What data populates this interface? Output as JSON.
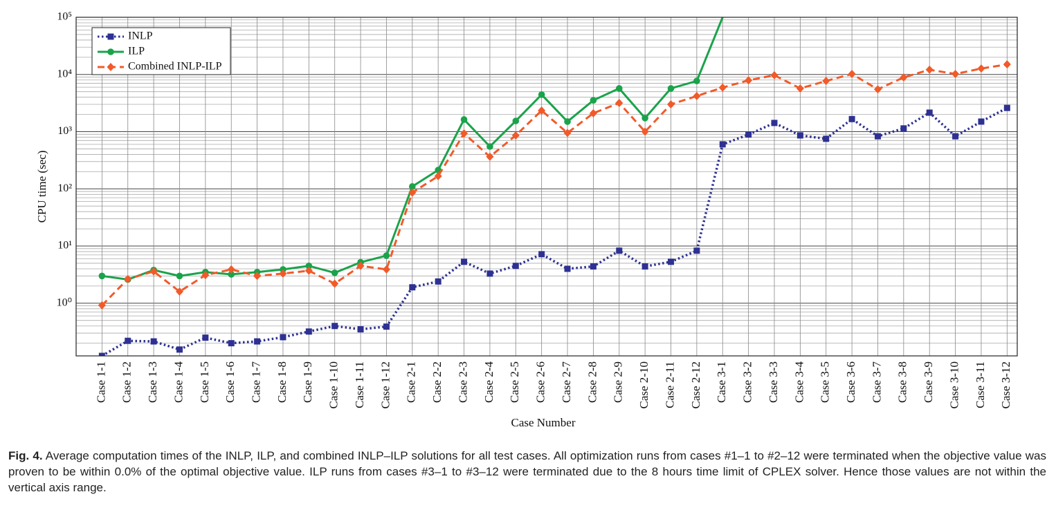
{
  "chart_data": {
    "type": "line",
    "y_label": "CPU time (sec)",
    "x_label": "Case Number",
    "categories": [
      "Case 1-1",
      "Case 1-2",
      "Case 1-3",
      "Case 1-4",
      "Case 1-5",
      "Case 1-6",
      "Case 1-7",
      "Case 1-8",
      "Case 1-9",
      "Case 1-10",
      "Case 1-11",
      "Case 1-12",
      "Case 2-1",
      "Case 2-2",
      "Case 2-3",
      "Case 2-4",
      "Case 2-5",
      "Case 2-6",
      "Case 2-7",
      "Case 2-8",
      "Case 2-9",
      "Case 2-10",
      "Case 2-11",
      "Case 2-12",
      "Case 3-1",
      "Case 3-2",
      "Case 3-3",
      "Case 3-4",
      "Case 3-5",
      "Case 3-6",
      "Case 3-7",
      "Case 3-8",
      "Case 3-9",
      "Case 3-10",
      "Case 3-11",
      "Case 3-12"
    ],
    "series": [
      {
        "name": "INLP",
        "color": "#2e3192",
        "style": "dotted",
        "marker": "square",
        "values": [
          0.12,
          0.22,
          0.215,
          0.155,
          0.25,
          0.2,
          0.215,
          0.255,
          0.32,
          0.4,
          0.35,
          0.39,
          1.9,
          2.4,
          5.3,
          3.3,
          4.5,
          7.2,
          4.0,
          4.4,
          8.3,
          4.4,
          5.3,
          8.3,
          600,
          890,
          1420,
          860,
          750,
          1660,
          830,
          1140,
          2150,
          830,
          1500,
          2600
        ]
      },
      {
        "name": "ILP",
        "color": "#1aa34a",
        "style": "solid",
        "marker": "circle",
        "values": [
          3.0,
          2.6,
          3.8,
          3.0,
          3.5,
          3.2,
          3.5,
          3.9,
          4.5,
          3.4,
          5.2,
          6.8,
          110,
          213,
          1630,
          550,
          1540,
          4440,
          1500,
          3530,
          5700,
          1730,
          5700,
          7700,
          100000,
          null,
          null,
          null,
          null,
          null,
          null,
          null,
          null,
          null,
          null,
          null
        ]
      },
      {
        "name": "Combined INLP-ILP",
        "color": "#f15a29",
        "style": "dashed",
        "marker": "diamond",
        "values": [
          0.92,
          2.65,
          3.6,
          1.6,
          3.1,
          3.9,
          3.0,
          3.3,
          3.7,
          2.2,
          4.5,
          3.9,
          86,
          167,
          930,
          365,
          860,
          2340,
          950,
          2100,
          3170,
          1000,
          3000,
          4200,
          5900,
          7900,
          9700,
          5700,
          7700,
          10200,
          5500,
          8900,
          12100,
          10200,
          12700,
          15000
        ]
      }
    ],
    "log_y": true,
    "ylim": [
      0.12,
      100000
    ],
    "yticks": [
      {
        "value": 1,
        "label": "10⁰"
      },
      {
        "value": 10,
        "label": "10¹"
      },
      {
        "value": 100,
        "label": "10²"
      },
      {
        "value": 1000,
        "label": "10³"
      },
      {
        "value": 10000,
        "label": "10⁴"
      },
      {
        "value": 100000,
        "label": "10⁵"
      }
    ],
    "grid": true,
    "legend": "upper left",
    "caption_label": "Fig. 4.",
    "caption": "Average computation times of the INLP, ILP, and combined INLP–ILP solutions for all test cases. All optimization runs from cases #1–1 to #2–12 were terminated when the objective value was proven to be within 0.0% of the optimal objective value. ILP runs from cases #3–1 to #3–12 were terminated due to the 8 hours time limit of CPLEX solver. Hence those values are not within the vertical axis range."
  }
}
